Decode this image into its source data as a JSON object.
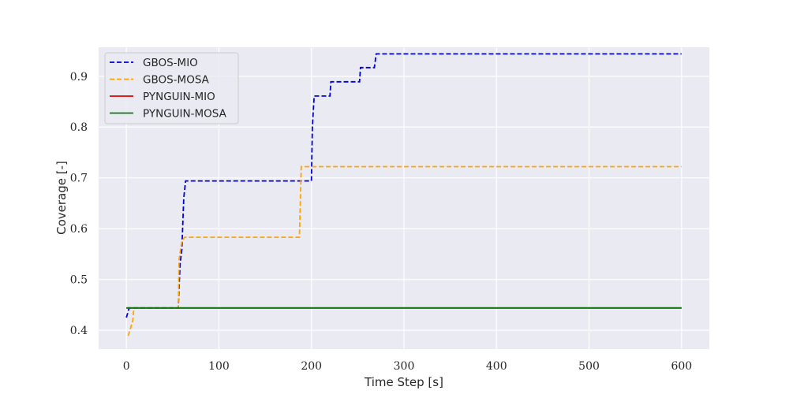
{
  "chart_data": {
    "type": "line",
    "title": "",
    "xlabel": "Time Step [s]",
    "ylabel": "Coverage [-]",
    "xlim": [
      -30,
      630
    ],
    "ylim": [
      0.363,
      0.957
    ],
    "xticks": [
      0,
      100,
      200,
      300,
      400,
      500,
      600
    ],
    "yticks": [
      0.4,
      0.5,
      0.6,
      0.7,
      0.8,
      0.9
    ],
    "ytick_labels": [
      "0.4",
      "0.5",
      "0.6",
      "0.7",
      "0.8",
      "0.9"
    ],
    "grid": true,
    "legend_position": "top-left",
    "background": "#eaeaf2",
    "series": [
      {
        "name": "GBOS-MIO",
        "color": "#0000dd",
        "style": "dashed",
        "x": [
          0,
          3,
          3,
          56,
          58,
          60,
          62,
          64,
          200,
          201,
          203,
          220,
          221,
          252,
          253,
          268,
          270,
          600
        ],
        "y": [
          0.425,
          0.444,
          0.444,
          0.444,
          0.53,
          0.56,
          0.66,
          0.694,
          0.694,
          0.8,
          0.861,
          0.861,
          0.889,
          0.889,
          0.917,
          0.917,
          0.944,
          0.944
        ]
      },
      {
        "name": "GBOS-MOSA",
        "color": "#ffa500",
        "style": "dashed",
        "x": [
          2,
          7,
          8,
          56,
          57,
          60,
          63,
          187,
          189,
          600
        ],
        "y": [
          0.389,
          0.42,
          0.444,
          0.444,
          0.54,
          0.575,
          0.583,
          0.583,
          0.722,
          0.722
        ]
      },
      {
        "name": "PYNGUIN-MIO",
        "color": "#dd0000",
        "style": "solid",
        "x": [
          0,
          600
        ],
        "y": [
          0.444,
          0.444
        ]
      },
      {
        "name": "PYNGUIN-MOSA",
        "color": "#117711",
        "style": "solid",
        "x": [
          0,
          600
        ],
        "y": [
          0.444,
          0.444
        ]
      }
    ]
  }
}
